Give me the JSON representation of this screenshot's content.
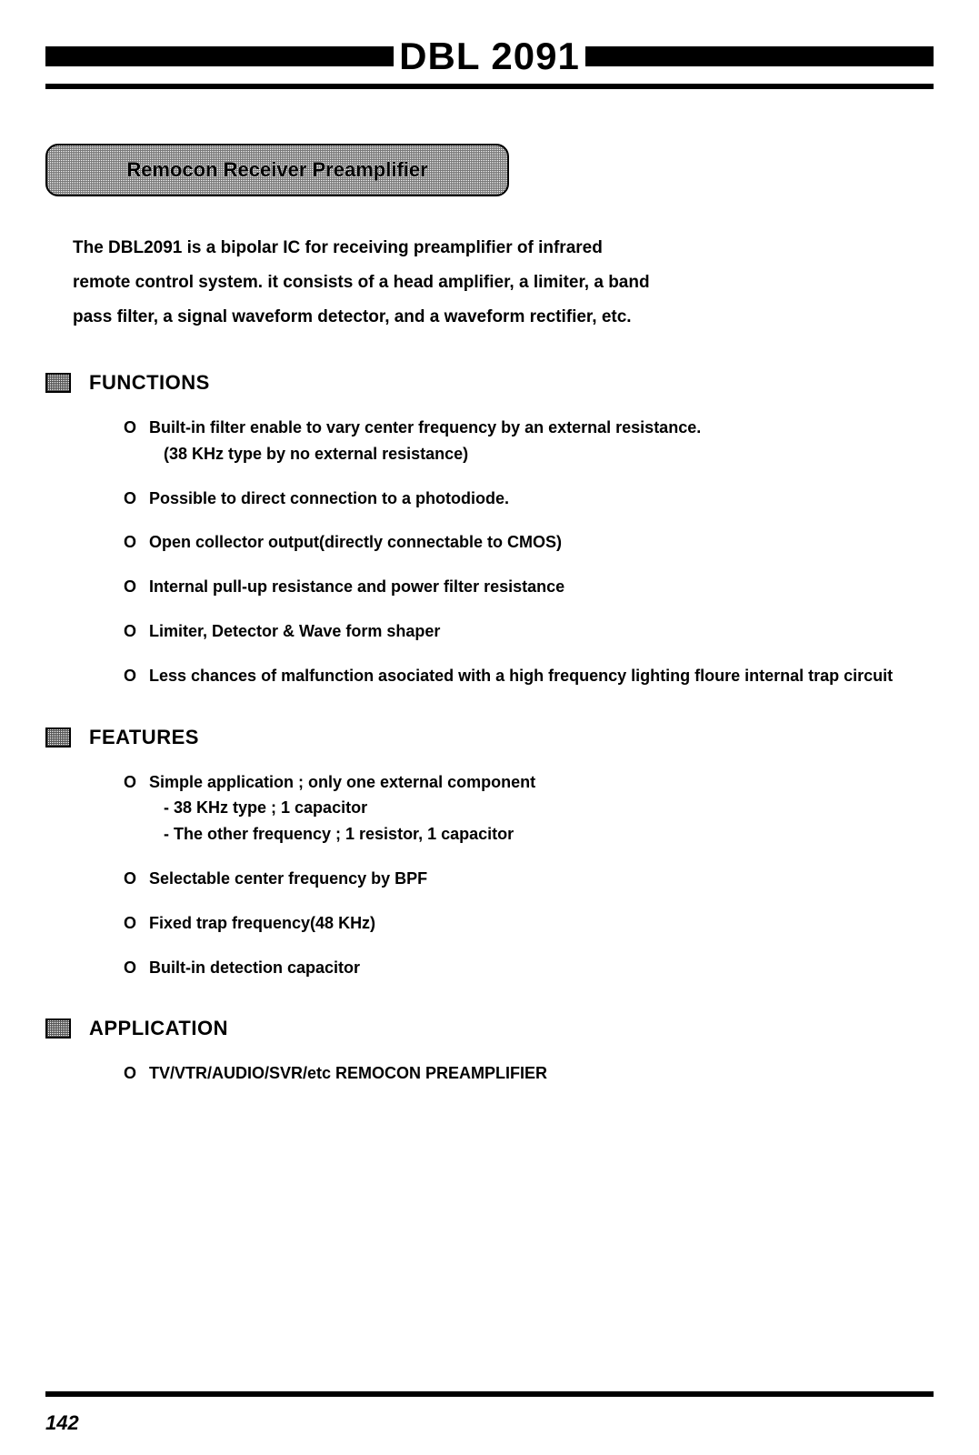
{
  "colors": {
    "background": "#ffffff",
    "text": "#000000",
    "rule": "#000000",
    "hatch": "#777777"
  },
  "typography": {
    "title_fontsize_pt": 32,
    "heading_fontsize_pt": 16,
    "body_fontsize_pt": 14,
    "font_family": "Arial"
  },
  "title": "DBL 2091",
  "subtitle": "Remocon Receiver Preamplifier",
  "intro": "The DBL2091 is a bipolar IC for receiving preamplifier of infrared remote control system. it consists of a head amplifier, a limiter, a band pass filter, a signal waveform detector, and a waveform rectifier, etc.",
  "sections": [
    {
      "heading": "FUNCTIONS",
      "items": [
        {
          "text": "Built-in filter enable to vary center frequency by an external resistance.",
          "sublines": [
            "(38 KHz type by no external resistance)"
          ]
        },
        {
          "text": "Possible to direct connection to a photodiode."
        },
        {
          "text": "Open collector output(directly connectable to CMOS)"
        },
        {
          "text": "Internal pull-up resistance and power filter resistance"
        },
        {
          "text": "Limiter, Detector & Wave form shaper"
        },
        {
          "text": "Less chances of malfunction asociated with a high frequency lighting floure internal trap circuit"
        }
      ]
    },
    {
      "heading": "FEATURES",
      "items": [
        {
          "text": "Simple application ; only one external component",
          "sublines": [
            "- 38 KHz type ; 1 capacitor",
            "- The other frequency ; 1 resistor, 1 capacitor"
          ]
        },
        {
          "text": "Selectable center frequency by BPF"
        },
        {
          "text": "Fixed trap frequency(48 KHz)"
        },
        {
          "text": "Built-in detection capacitor"
        }
      ]
    },
    {
      "heading": "APPLICATION",
      "items": [
        {
          "text": "TV/VTR/AUDIO/SVR/etc REMOCON PREAMPLIFIER"
        }
      ]
    }
  ],
  "page_number": "142"
}
